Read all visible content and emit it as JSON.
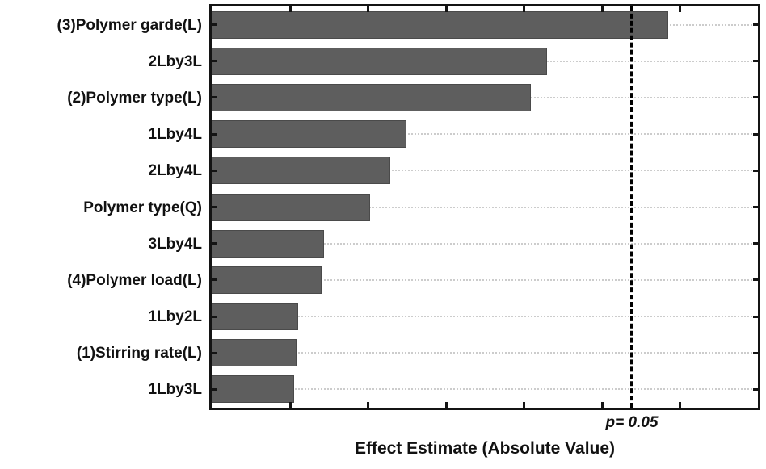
{
  "chart_data": {
    "type": "bar",
    "orientation": "horizontal",
    "title": "",
    "xlabel": "Effect Estimate (Absolute Value)",
    "ylabel": "",
    "categories": [
      "(3)Polymer garde(L)",
      "2Lby3L",
      "(2)Polymer type(L)",
      "1Lby4L",
      "2Lby4L",
      "Polymer type(Q)",
      "3Lby4L",
      "(4)Polymer load(L)",
      "1Lby2L",
      "(1)Stirring rate(L)",
      "1Lby3L"
    ],
    "values": [
      5.85,
      4.3,
      4.09,
      2.5,
      2.29,
      2.03,
      1.44,
      1.41,
      1.11,
      1.09,
      1.06
    ],
    "xlim": [
      0,
      7
    ],
    "x_tick_interval": 1,
    "x_tick_labels_visible": false,
    "grid": "horizontal-dotted",
    "legend": "none",
    "reference_line": {
      "label": "p= 0.05",
      "value": 5.38,
      "style": "dashed"
    },
    "colors": {
      "bar": "#5e5e5e",
      "bar_border": "#4a4a4a",
      "axis": "#141414",
      "grid": "#cccccc",
      "reference": "#000000",
      "text": "#111111",
      "background": "#ffffff"
    }
  }
}
